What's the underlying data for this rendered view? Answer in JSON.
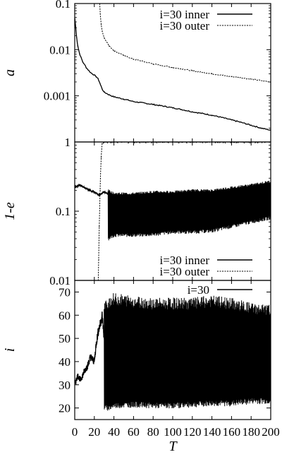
{
  "chart_data": [
    {
      "type": "line",
      "ylabel": "a",
      "yscale": "log",
      "xlim": [
        0,
        200
      ],
      "ylim": [
        0.0001,
        0.1
      ],
      "yticks": [
        0.001,
        0.01,
        0.1
      ],
      "ytick_labels": [
        "0.001",
        "0.01",
        "0.1"
      ],
      "legend": "top-right",
      "series": [
        {
          "name": "i=30 inner",
          "style": "solid",
          "x": [
            0,
            1,
            2,
            3,
            5,
            8,
            12,
            16,
            20,
            22,
            24,
            26,
            28,
            30,
            35,
            40,
            50,
            60,
            80,
            100,
            120,
            140,
            160,
            180,
            190,
            200
          ],
          "y": [
            0.05,
            0.03,
            0.018,
            0.012,
            0.008,
            0.0055,
            0.004,
            0.0032,
            0.0028,
            0.0026,
            0.0023,
            0.0018,
            0.0014,
            0.0012,
            0.00105,
            0.00095,
            0.00085,
            0.00075,
            0.00065,
            0.00055,
            0.00045,
            0.00038,
            0.0003,
            0.00023,
            0.0002,
            0.00018
          ]
        },
        {
          "name": "i=30 outer",
          "style": "dotted",
          "x": [
            25.5,
            26,
            27,
            28,
            30,
            35,
            40,
            50,
            60,
            80,
            100,
            120,
            140,
            160,
            180,
            200
          ],
          "y": [
            0.1,
            0.06,
            0.035,
            0.025,
            0.018,
            0.012,
            0.0095,
            0.0075,
            0.0062,
            0.0049,
            0.0041,
            0.0035,
            0.003,
            0.0026,
            0.0023,
            0.002
          ]
        }
      ]
    },
    {
      "type": "line",
      "ylabel": "1-e",
      "yscale": "log",
      "xlim": [
        0,
        200
      ],
      "ylim": [
        0.01,
        1
      ],
      "yticks": [
        0.01,
        0.1,
        1
      ],
      "ytick_labels": [
        "0.01",
        "0.1",
        "1"
      ],
      "legend": "bottom-right",
      "series": [
        {
          "name": "i=30 inner",
          "style": "solid",
          "x": [
            0,
            5,
            10,
            15,
            20,
            25,
            30,
            34
          ],
          "y": [
            0.22,
            0.24,
            0.22,
            0.2,
            0.19,
            0.17,
            0.19,
            0.18
          ],
          "band_x": [
            34,
            40,
            60,
            80,
            100,
            120,
            140,
            160,
            180,
            200
          ],
          "band_low": [
            0.04,
            0.045,
            0.045,
            0.046,
            0.05,
            0.05,
            0.052,
            0.06,
            0.07,
            0.08
          ],
          "band_high": [
            0.2,
            0.18,
            0.18,
            0.19,
            0.19,
            0.2,
            0.2,
            0.22,
            0.24,
            0.27
          ]
        },
        {
          "name": "i=30 outer",
          "style": "dotted",
          "x": [
            24,
            24.5,
            25,
            26,
            27,
            28,
            30,
            40,
            60,
            80,
            100,
            120,
            140,
            160,
            180,
            200
          ],
          "y": [
            0.01,
            0.02,
            0.06,
            0.2,
            0.6,
            0.95,
            0.98,
            0.99,
            0.99,
            0.99,
            0.99,
            0.99,
            0.99,
            0.99,
            0.99,
            0.99
          ]
        }
      ]
    },
    {
      "type": "line",
      "xlabel": "T",
      "ylabel": "i",
      "xlim": [
        0,
        200
      ],
      "ylim": [
        15,
        75
      ],
      "xticks": [
        0,
        20,
        40,
        60,
        80,
        100,
        120,
        140,
        160,
        180,
        200
      ],
      "xtick_labels": [
        "0",
        "20",
        "40",
        "60",
        "80",
        "100",
        "120",
        "140",
        "160",
        "180",
        "200"
      ],
      "yticks": [
        20,
        30,
        40,
        50,
        60,
        70
      ],
      "ytick_labels": [
        "20",
        "30",
        "40",
        "50",
        "60",
        "70"
      ],
      "legend": "top-right",
      "series": [
        {
          "name": "i=30",
          "style": "solid",
          "x": [
            0,
            3,
            6,
            10,
            13,
            16,
            20,
            22,
            24,
            26,
            28,
            30
          ],
          "y": [
            30,
            34,
            32,
            36,
            38,
            42,
            40,
            48,
            53,
            56,
            60,
            50
          ],
          "band_x": [
            30,
            35,
            40,
            60,
            80,
            100,
            120,
            140,
            160,
            180,
            200
          ],
          "band_low": [
            20,
            20,
            21,
            21.5,
            21,
            21,
            21.5,
            22,
            22,
            23,
            23
          ],
          "band_high": [
            63,
            66,
            67,
            66,
            65,
            65,
            65,
            66,
            65,
            63,
            62
          ]
        }
      ]
    }
  ]
}
